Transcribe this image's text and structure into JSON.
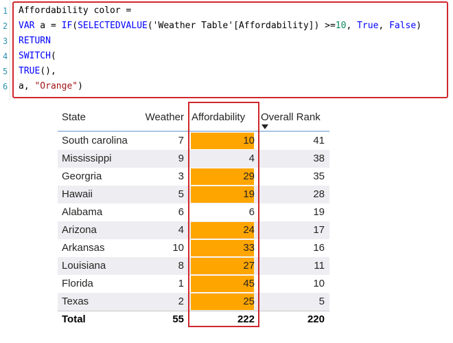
{
  "editor": {
    "line_numbers": [
      "1",
      "2",
      "3",
      "4",
      "5",
      "6"
    ],
    "line1": {
      "text": "Affordability color ="
    },
    "line2": {
      "kw_var": "VAR",
      "name_eq": " a = ",
      "fn_if": "IF",
      "paren_open": "(",
      "fn_selectedvalue": "SELECTEDVALUE",
      "arg": "('Weather Table'[Affordability]) >=",
      "num": "10",
      "comma1": ", ",
      "true_kw": "True",
      "comma2": ", ",
      "false_kw": "False",
      "paren_close": ")"
    },
    "line3": {
      "kw": "RETURN"
    },
    "line4": {
      "fn": "SWITCH",
      "rest": "("
    },
    "line5": {
      "fn": "TRUE",
      "rest": "(),"
    },
    "line6": {
      "name": "a, ",
      "str": "\"Orange\"",
      "rest": ")"
    }
  },
  "table": {
    "columns": [
      "State",
      "Weather",
      "Affordability",
      "Overall Rank"
    ],
    "rows": [
      {
        "state": "South carolina",
        "weather": "7",
        "affordability": "10",
        "rank": "41",
        "highlight": true
      },
      {
        "state": "Mississippi",
        "weather": "9",
        "affordability": "4",
        "rank": "38",
        "highlight": false
      },
      {
        "state": "Georgria",
        "weather": "3",
        "affordability": "29",
        "rank": "35",
        "highlight": true
      },
      {
        "state": "Hawaii",
        "weather": "5",
        "affordability": "19",
        "rank": "28",
        "highlight": true
      },
      {
        "state": "Alabama",
        "weather": "6",
        "affordability": "6",
        "rank": "19",
        "highlight": false
      },
      {
        "state": "Arizona",
        "weather": "4",
        "affordability": "24",
        "rank": "17",
        "highlight": true
      },
      {
        "state": "Arkansas",
        "weather": "10",
        "affordability": "33",
        "rank": "16",
        "highlight": true
      },
      {
        "state": "Louisiana",
        "weather": "8",
        "affordability": "27",
        "rank": "11",
        "highlight": true
      },
      {
        "state": "Florida",
        "weather": "1",
        "affordability": "45",
        "rank": "10",
        "highlight": true
      },
      {
        "state": "Texas",
        "weather": "2",
        "affordability": "25",
        "rank": "5",
        "highlight": true
      }
    ],
    "total": {
      "label": "Total",
      "weather": "55",
      "affordability": "222",
      "rank": "220"
    },
    "sorted_column": "Overall Rank",
    "sort_direction": "descending",
    "sort_icon": "caret-down-icon"
  },
  "colors": {
    "highlight_fill": "#ffa500",
    "annotation_box": "#d0262c",
    "alt_row": "#eeedf1",
    "header_rule": "#a8c7e4"
  }
}
